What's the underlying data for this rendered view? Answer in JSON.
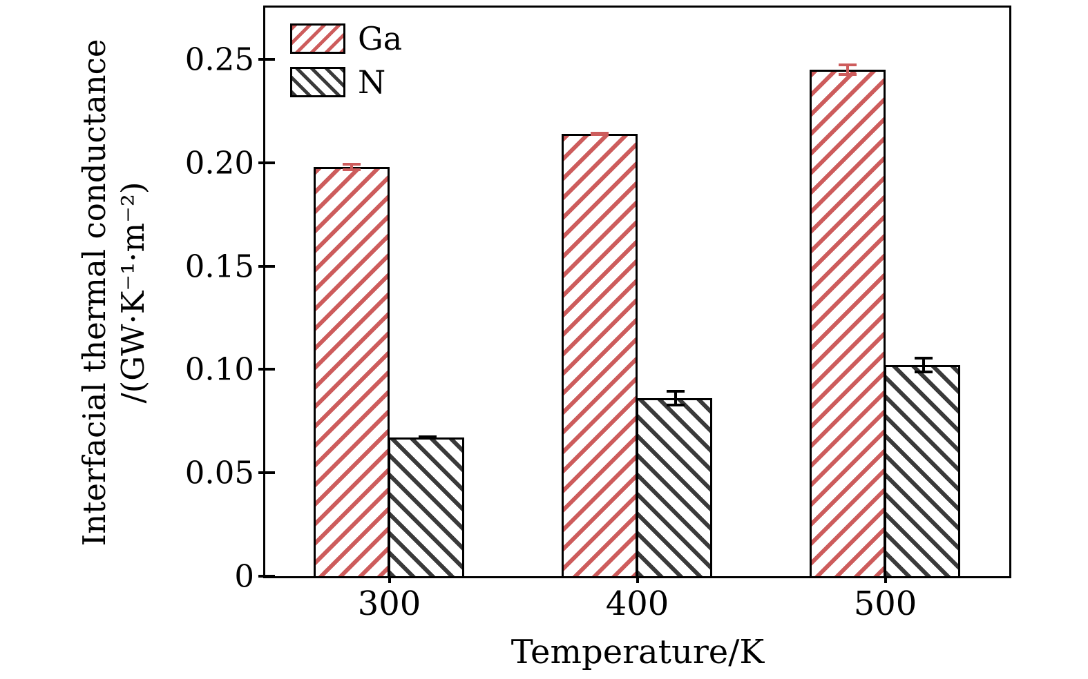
{
  "figure": {
    "background": "#ffffff"
  },
  "chart_data": {
    "type": "bar",
    "title": "",
    "xlabel": "Temperature/K",
    "ylabel_line1": "Interfacial thermal conductance",
    "ylabel_line2": "/(GW·K⁻¹·m⁻²)",
    "categories": [
      "300",
      "400",
      "500"
    ],
    "series": [
      {
        "name": "Ga",
        "values": [
          0.198,
          0.214,
          0.245
        ],
        "errors": [
          0.002,
          0.001,
          0.003
        ],
        "hatch": "/",
        "hatch_color": "#cd5c5c",
        "edge_color": "#000000",
        "error_color": "#cd5c5c"
      },
      {
        "name": "N",
        "values": [
          0.067,
          0.086,
          0.102
        ],
        "errors": [
          0.001,
          0.004,
          0.004
        ],
        "hatch": "\\",
        "hatch_color": "#3a3a3a",
        "edge_color": "#000000",
        "error_color": "#000000"
      }
    ],
    "ylim": [
      0,
      0.275
    ],
    "yticks": {
      "values": [
        0,
        0.05,
        0.1,
        0.15,
        0.2,
        0.25
      ],
      "labels": [
        "0",
        "0.05",
        "0.10",
        "0.15",
        "0.20",
        "0.25"
      ]
    },
    "legend": {
      "position": "upper-left",
      "entries": [
        "Ga",
        "N"
      ]
    },
    "grid": false,
    "axes_frame": "box",
    "tick_direction": "inout"
  }
}
